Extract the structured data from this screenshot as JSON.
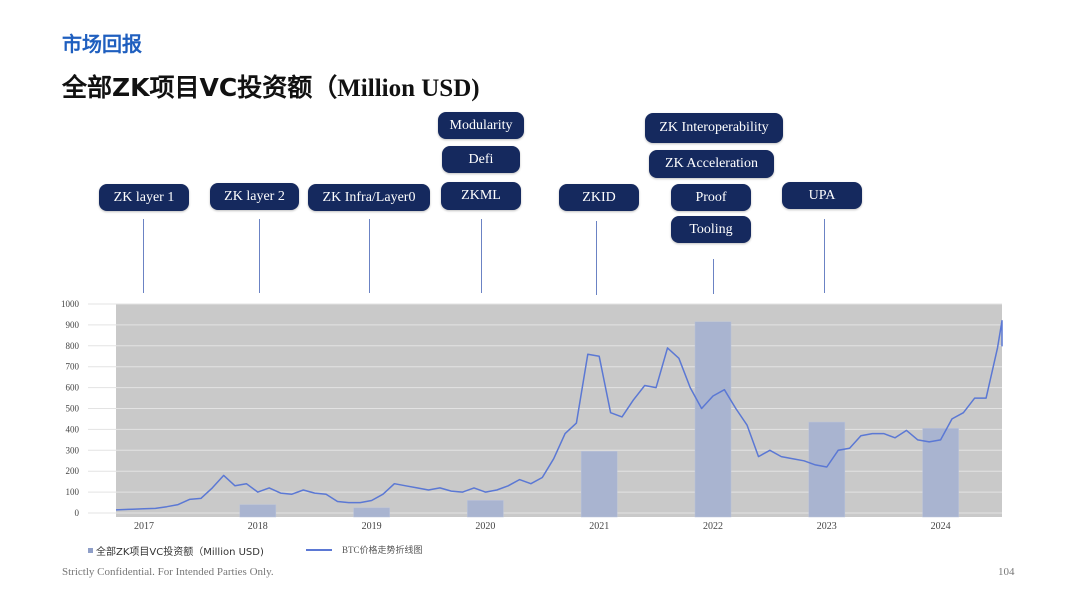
{
  "header": {
    "section": "市场回报",
    "title_cn": "全部ZK项目VC投资额",
    "title_en": "（Million USD)"
  },
  "tags": [
    {
      "id": "zk-layer-1",
      "label": "ZK layer 1"
    },
    {
      "id": "zk-layer-2",
      "label": "ZK layer 2"
    },
    {
      "id": "zk-infra",
      "label": "ZK Infra/Layer0"
    },
    {
      "id": "modularity",
      "label": "Modularity"
    },
    {
      "id": "defi",
      "label": "Defi"
    },
    {
      "id": "zkml",
      "label": "ZKML"
    },
    {
      "id": "zkid",
      "label": "ZKID"
    },
    {
      "id": "zk-interop",
      "label": "ZK Interoperability"
    },
    {
      "id": "zk-accel",
      "label": "ZK Acceleration"
    },
    {
      "id": "proof",
      "label": "Proof"
    },
    {
      "id": "tooling",
      "label": "Tooling"
    },
    {
      "id": "upa",
      "label": "UPA"
    }
  ],
  "chart_data": {
    "type": "bar+line",
    "ylim": [
      0,
      1000
    ],
    "yticks": [
      "0",
      "100",
      "200",
      "300",
      "400",
      "500",
      "600",
      "700",
      "800",
      "900",
      "1000"
    ],
    "categories": [
      "2017",
      "2018",
      "2019",
      "2020",
      "2021",
      "2022",
      "2023",
      "2024"
    ],
    "grid": true,
    "legend_position": "bottom-left",
    "series": [
      {
        "name": "全部ZK项目VC投资额（Million USD)",
        "type": "bar",
        "color": "#a9b4d0",
        "values": [
          0,
          40,
          25,
          60,
          295,
          915,
          435,
          405
        ]
      },
      {
        "name": "BTC价格走势折线图",
        "type": "line",
        "color": "#5b78d4",
        "x": [
          2016.75,
          2016.9,
          2017.0,
          2017.1,
          2017.2,
          2017.3,
          2017.4,
          2017.5,
          2017.6,
          2017.7,
          2017.8,
          2017.9,
          2018.0,
          2018.1,
          2018.2,
          2018.3,
          2018.4,
          2018.5,
          2018.6,
          2018.7,
          2018.8,
          2018.9,
          2019.0,
          2019.1,
          2019.2,
          2019.3,
          2019.4,
          2019.5,
          2019.6,
          2019.7,
          2019.8,
          2019.9,
          2020.0,
          2020.1,
          2020.2,
          2020.3,
          2020.4,
          2020.5,
          2020.6,
          2020.7,
          2020.8,
          2020.9,
          2021.0,
          2021.1,
          2021.2,
          2021.3,
          2021.4,
          2021.5,
          2021.6,
          2021.7,
          2021.8,
          2021.9,
          2022.0,
          2022.1,
          2022.2,
          2022.3,
          2022.4,
          2022.5,
          2022.6,
          2022.7,
          2022.8,
          2022.9,
          2023.0,
          2023.1,
          2023.2,
          2023.3,
          2023.4,
          2023.5,
          2023.6,
          2023.7,
          2023.8,
          2023.9,
          2024.0,
          2024.1,
          2024.2,
          2024.3,
          2024.4,
          2024.5,
          2024.6,
          2024.7,
          2024.8,
          2024.9,
          2025.0
        ],
        "values": [
          15,
          18,
          20,
          22,
          30,
          40,
          65,
          70,
          120,
          180,
          130,
          140,
          100,
          120,
          95,
          90,
          110,
          95,
          90,
          55,
          50,
          50,
          60,
          90,
          140,
          130,
          120,
          110,
          120,
          105,
          100,
          120,
          100,
          110,
          130,
          160,
          140,
          170,
          260,
          380,
          430,
          760,
          750,
          480,
          460,
          540,
          610,
          600,
          790,
          740,
          600,
          500,
          560,
          590,
          500,
          420,
          270,
          300,
          270,
          260,
          250,
          230,
          220,
          300,
          310,
          370,
          380,
          380,
          360,
          395,
          350,
          340,
          350,
          450,
          480,
          550,
          550,
          790,
          920,
          800,
          870,
          815,
          840
        ]
      }
    ]
  },
  "legend": {
    "bar_label": "全部ZK项目VC投资额（Million USD)",
    "line_label": "BTC价格走势折线图"
  },
  "footer": {
    "confidential": "Strictly Confidential. For Intended Parties Only.",
    "page": "104"
  }
}
